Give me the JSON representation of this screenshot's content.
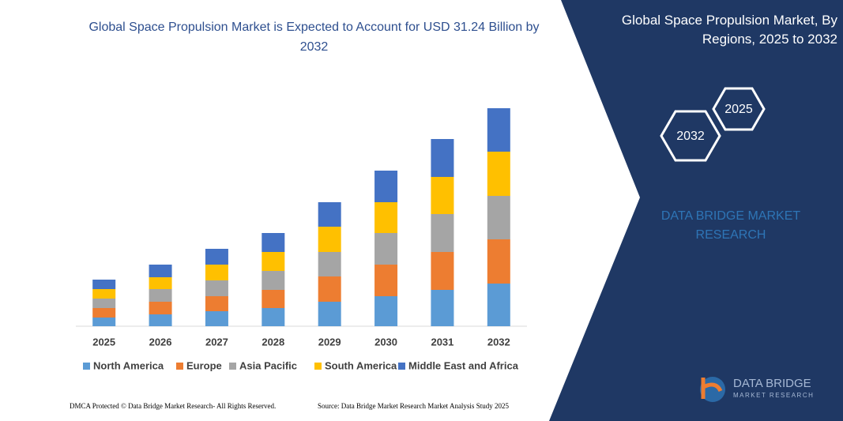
{
  "chart_data": {
    "type": "stacked-bar",
    "title": "Global Space Propulsion Market is Expected to Account for USD 31.24 Billion by 2032",
    "categories": [
      "2025",
      "2026",
      "2027",
      "2028",
      "2029",
      "2030",
      "2031",
      "2032"
    ],
    "series": [
      {
        "name": "North America",
        "color": "#5b9bd5",
        "values": [
          11,
          15,
          19,
          23,
          31,
          38,
          46,
          54
        ]
      },
      {
        "name": "Europe",
        "color": "#ed7d31",
        "values": [
          12,
          16,
          19,
          23,
          32,
          40,
          48,
          56
        ]
      },
      {
        "name": "Asia Pacific",
        "color": "#a5a5a5",
        "values": [
          12,
          16,
          20,
          24,
          31,
          40,
          48,
          55
        ]
      },
      {
        "name": "South America",
        "color": "#ffc000",
        "values": [
          12,
          15,
          20,
          24,
          32,
          39,
          47,
          56
        ]
      },
      {
        "name": "Middle East and Africa",
        "color": "#4472c4",
        "values": [
          12,
          16,
          20,
          24,
          31,
          40,
          48,
          55
        ]
      }
    ],
    "ylim": [
      0,
      290
    ],
    "legend": "bottom"
  },
  "panel": {
    "title": "Global Space Propulsion Market, By Regions, 2025 to 2032",
    "hexagons": [
      "2025",
      "2032"
    ],
    "brand": "DATA BRIDGE MARKET RESEARCH"
  },
  "footer": {
    "left": "DMCA Protected © Data Bridge Market Research-  All Rights Reserved.",
    "right": "Source: Data Bridge Market Research  Market Analysis Study 2025"
  },
  "logo": {
    "name": "DATA BRIDGE",
    "tagline": "MARKET RESEARCH"
  }
}
